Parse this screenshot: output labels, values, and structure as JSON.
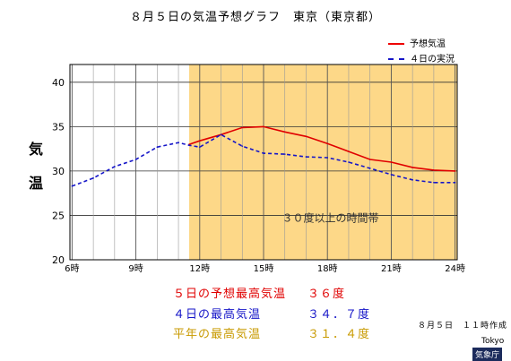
{
  "chart_data": {
    "type": "line",
    "title": "８月５日の気温予想グラフ　東京（東京都）",
    "ylabel": "気温",
    "ylim": [
      20,
      42
    ],
    "yticks": [
      "20",
      "25",
      "30",
      "35",
      "40"
    ],
    "xlabels": [
      "6時",
      "9時",
      "12時",
      "15時",
      "18時",
      "21時",
      "24時"
    ],
    "xlabel_hours": [
      6,
      9,
      12,
      15,
      18,
      21,
      24
    ],
    "xlim": [
      5.9,
      24.1
    ],
    "highlight": {
      "from": 11.5,
      "to": 24.1,
      "color": "#fdd888",
      "label": "３０度以上の時間帯"
    },
    "series": [
      {
        "name": "予想気温",
        "color": "#e00000",
        "dash": false,
        "x": [
          11.5,
          12,
          13,
          14,
          15,
          16,
          17,
          18,
          19,
          20,
          21,
          22,
          23,
          24
        ],
        "y": [
          33,
          33.4,
          34.1,
          34.9,
          35.0,
          34.4,
          33.9,
          33.1,
          32.2,
          31.3,
          31.0,
          30.4,
          30.1,
          30.0
        ]
      },
      {
        "name": "４日の実況",
        "color": "#1515c8",
        "dash": true,
        "x": [
          6,
          7,
          8,
          9,
          10,
          11,
          11.5,
          12,
          13,
          14,
          15,
          16,
          17,
          18,
          19,
          20,
          21,
          22,
          23,
          24
        ],
        "y": [
          28.3,
          29.2,
          30.5,
          31.3,
          32.7,
          33.2,
          32.9,
          32.7,
          34.1,
          32.8,
          32.0,
          31.9,
          31.6,
          31.5,
          31.0,
          30.3,
          29.6,
          29.0,
          28.7,
          28.7
        ]
      }
    ],
    "stats": [
      {
        "label": "５日の予想最高気温",
        "value": "３６度",
        "color": "#e00000"
      },
      {
        "label": "４日の最高気温",
        "value": "３４．７度",
        "color": "#1515c8"
      },
      {
        "label": "平年の最高気温",
        "value": "３１．４度",
        "color": "#c89a00"
      }
    ],
    "made": "８月５日　１１時作成",
    "credit_en": "Tokyo",
    "credit_jp": "気象庁"
  }
}
